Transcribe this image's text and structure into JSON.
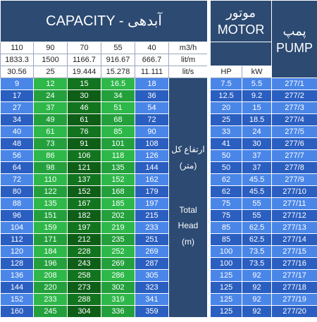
{
  "header": {
    "capacity_title": "CAPACITY - آبدهی",
    "motor_title_fa": "موتور",
    "motor_title_en": "MOTOR",
    "pump_title_fa": "پمپ",
    "pump_title_en": "PUMP"
  },
  "units": {
    "row_m3h": [
      "110",
      "90",
      "70",
      "55",
      "40",
      "m3/h"
    ],
    "row_litm": [
      "1833.3",
      "1500",
      "1166.7",
      "916.67",
      "666.7",
      "lit/m"
    ],
    "row_lits": [
      "30.56",
      "25",
      "19.444",
      "15.278",
      "11.111",
      "lit/s"
    ],
    "motor_hp": "HP",
    "motor_kw": "kW"
  },
  "head_label": {
    "fa_line1": "ارتفاع کل",
    "fa_line2": "(متر)",
    "en_line1": "Total",
    "en_line2": "Head",
    "en_line3": "(m)"
  },
  "rows": [
    {
      "h": [
        "9",
        "12",
        "15",
        "16.5",
        "18"
      ],
      "hp": "7.5",
      "kw": "5.5",
      "pump": "277/1"
    },
    {
      "h": [
        "17",
        "24",
        "30",
        "34",
        "36"
      ],
      "hp": "12.5",
      "kw": "9.2",
      "pump": "277/2"
    },
    {
      "h": [
        "27",
        "37",
        "46",
        "51",
        "54"
      ],
      "hp": "20",
      "kw": "15",
      "pump": "277/3"
    },
    {
      "h": [
        "34",
        "49",
        "61",
        "68",
        "72"
      ],
      "hp": "25",
      "kw": "18.5",
      "pump": "277/4"
    },
    {
      "h": [
        "40",
        "61",
        "76",
        "85",
        "90"
      ],
      "hp": "33",
      "kw": "24",
      "pump": "277/5"
    },
    {
      "h": [
        "48",
        "73",
        "91",
        "101",
        "108"
      ],
      "hp": "41",
      "kw": "30",
      "pump": "277/6"
    },
    {
      "h": [
        "56",
        "86",
        "106",
        "118",
        "126"
      ],
      "hp": "50",
      "kw": "37",
      "pump": "277/7"
    },
    {
      "h": [
        "64",
        "98",
        "121",
        "135",
        "144"
      ],
      "hp": "50",
      "kw": "37",
      "pump": "277/8"
    },
    {
      "h": [
        "72",
        "110",
        "137",
        "152",
        "162"
      ],
      "hp": "62",
      "kw": "45.5",
      "pump": "277/9"
    },
    {
      "h": [
        "80",
        "122",
        "152",
        "168",
        "179"
      ],
      "hp": "62",
      "kw": "45.5",
      "pump": "277/10"
    },
    {
      "h": [
        "88",
        "135",
        "167",
        "185",
        "197"
      ],
      "hp": "75",
      "kw": "55",
      "pump": "277/11"
    },
    {
      "h": [
        "96",
        "151",
        "182",
        "202",
        "215"
      ],
      "hp": "75",
      "kw": "55",
      "pump": "277/12"
    },
    {
      "h": [
        "104",
        "159",
        "197",
        "219",
        "233"
      ],
      "hp": "85",
      "kw": "62.5",
      "pump": "277/13"
    },
    {
      "h": [
        "112",
        "171",
        "212",
        "235",
        "251"
      ],
      "hp": "85",
      "kw": "62.5",
      "pump": "277/14"
    },
    {
      "h": [
        "120",
        "184",
        "228",
        "252",
        "269"
      ],
      "hp": "100",
      "kw": "73.5",
      "pump": "277/15"
    },
    {
      "h": [
        "128",
        "196",
        "243",
        "269",
        "287"
      ],
      "hp": "100",
      "kw": "73.5",
      "pump": "277/16"
    },
    {
      "h": [
        "136",
        "208",
        "258",
        "286",
        "305"
      ],
      "hp": "125",
      "kw": "92",
      "pump": "277/17"
    },
    {
      "h": [
        "144",
        "220",
        "273",
        "302",
        "323"
      ],
      "hp": "125",
      "kw": "92",
      "pump": "277/18"
    },
    {
      "h": [
        "152",
        "233",
        "288",
        "319",
        "341"
      ],
      "hp": "125",
      "kw": "92",
      "pump": "277/19"
    },
    {
      "h": [
        "160",
        "245",
        "304",
        "336",
        "359"
      ],
      "hp": "125",
      "kw": "92",
      "pump": "277/20"
    }
  ],
  "colors": {
    "header_navy": "#2c4a72",
    "blue": "#4a86e8",
    "green": "#2fb84a",
    "dark_green": "#13741f"
  }
}
